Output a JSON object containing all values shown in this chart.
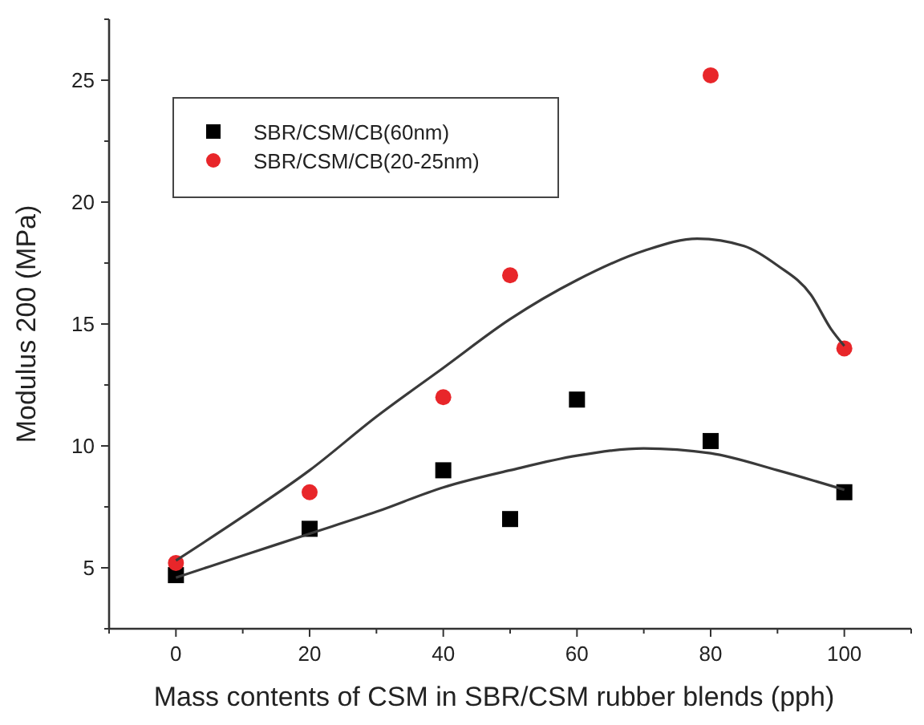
{
  "chart_data": {
    "type": "scatter",
    "xlabel": "Mass contents of CSM in SBR/CSM rubber blends (pph)",
    "ylabel": "Modulus 200 (MPa)",
    "xlim": [
      -10,
      110
    ],
    "xticks": [
      {
        "value": -10,
        "label": null
      },
      0,
      {
        "value": 10,
        "label": null
      },
      20,
      {
        "value": 30,
        "label": null
      },
      40,
      {
        "value": 50,
        "label": null
      },
      60,
      {
        "value": 70,
        "label": null
      },
      80,
      {
        "value": 90,
        "label": null
      },
      100,
      {
        "value": 110,
        "label": null
      }
    ],
    "ylim": [
      2.5,
      27.5
    ],
    "yticks": [
      {
        "value": 2.5,
        "label": null
      },
      5,
      {
        "value": 7.5,
        "label": null
      },
      10,
      {
        "value": 12.5,
        "label": null
      },
      15,
      {
        "value": 17.5,
        "label": null
      },
      20,
      {
        "value": 22.5,
        "label": null
      },
      25,
      {
        "value": 27.5,
        "label": null
      }
    ],
    "grid": false,
    "legend": "top left",
    "series": [
      {
        "name": "SBR/CSM/CB(60nm)",
        "color": "#000000",
        "marker": "square",
        "x": [
          0,
          20,
          40,
          50,
          60,
          80,
          100
        ],
        "values": [
          4.7,
          6.6,
          9.0,
          7.0,
          11.9,
          10.2,
          8.1
        ]
      },
      {
        "name": "SBR/CSM/CB(20-25nm)",
        "color": "#e8262a",
        "marker": "circle",
        "x": [
          0,
          20,
          40,
          50,
          80,
          100
        ],
        "values": [
          5.2,
          8.1,
          12.0,
          17.0,
          25.2,
          14.0
        ]
      },
      {
        "type": "line",
        "color": "#3a3a3a",
        "marker": "none",
        "line_style": "solid",
        "x": [
          0,
          10,
          20,
          30,
          40,
          50,
          60,
          70,
          80,
          90,
          100
        ],
        "values": [
          4.6,
          5.5,
          6.4,
          7.3,
          8.3,
          9.0,
          9.6,
          9.9,
          9.7,
          9.0,
          8.2
        ]
      },
      {
        "type": "line",
        "color": "#3a3a3a",
        "marker": "none",
        "line_style": "solid",
        "x": [
          0,
          10,
          20,
          30,
          40,
          50,
          60,
          70,
          78,
          85,
          90,
          95,
          98,
          100
        ],
        "values": [
          5.3,
          7.1,
          9.0,
          11.2,
          13.2,
          15.2,
          16.8,
          18.0,
          18.5,
          18.2,
          17.4,
          16.2,
          14.8,
          14.1
        ]
      }
    ]
  }
}
